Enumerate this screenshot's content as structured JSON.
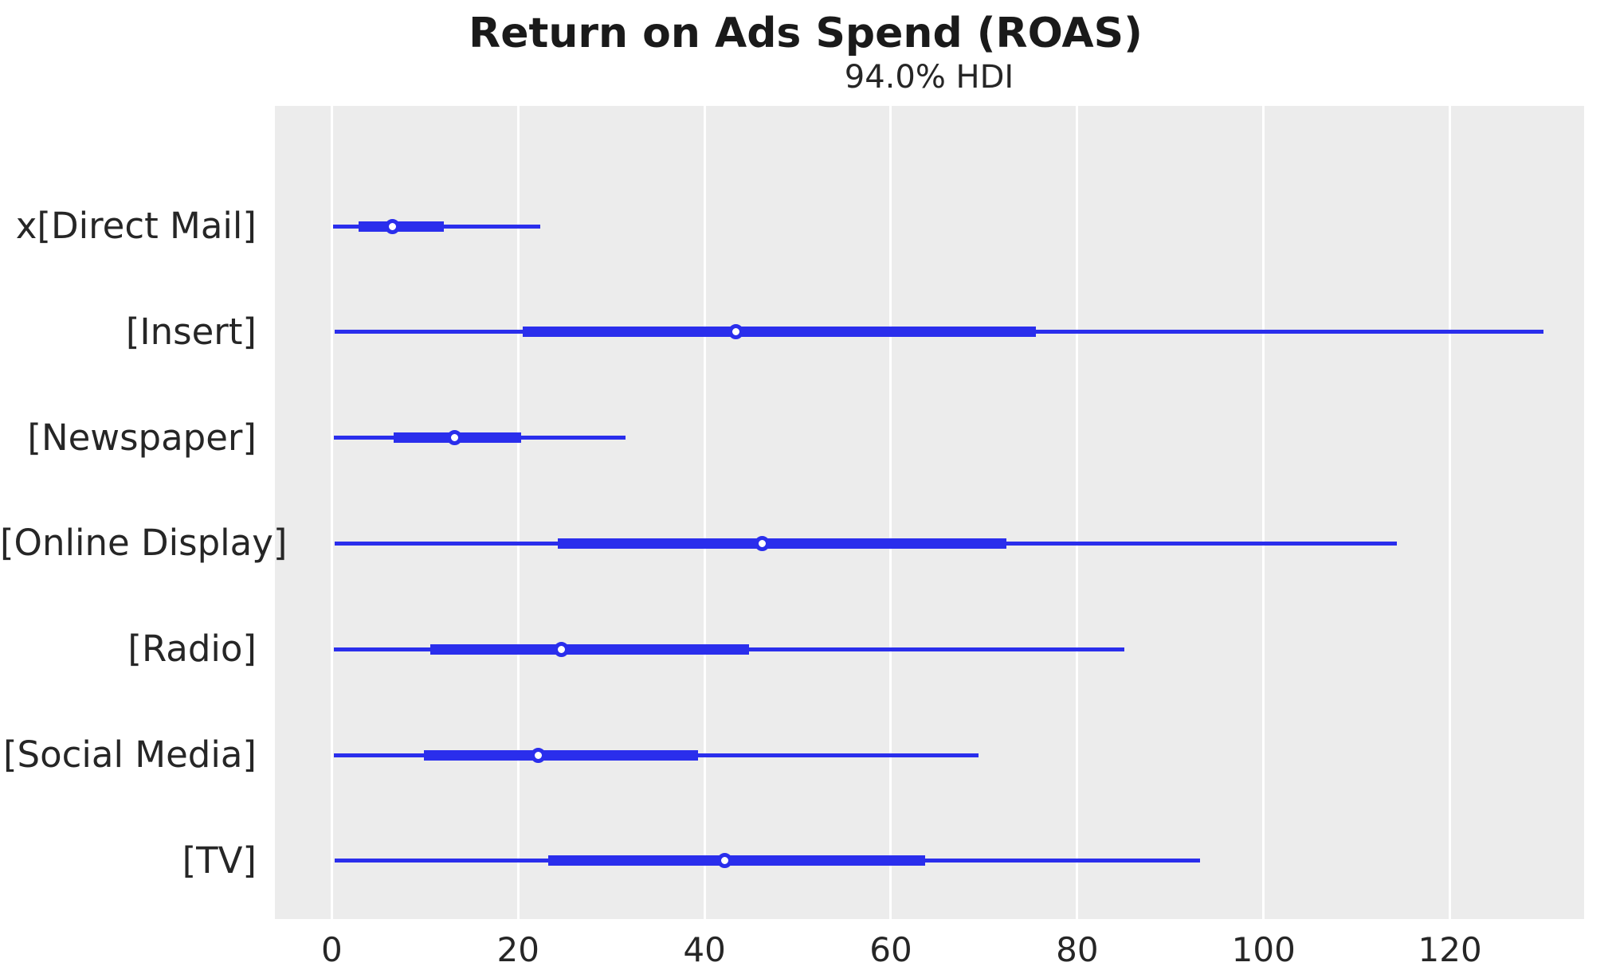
{
  "title": "Return on Ads Spend (ROAS)",
  "subtitle": "94.0% HDI",
  "colors": {
    "line": "#2a2eec",
    "plot_background": "#ececec",
    "gridline": "#ffffff",
    "text": "#262626",
    "title_text": "#1a1a1a"
  },
  "chart_data": {
    "type": "forest",
    "title": "Return on Ads Spend (ROAS)",
    "subtitle": "94.0% HDI",
    "orientation": "horizontal",
    "xlim": [
      -6.1,
      134.4
    ],
    "x_ticks": [
      0,
      20,
      40,
      60,
      80,
      100,
      120
    ],
    "grid": "vertical white gridlines on gray panel",
    "legend": "none",
    "series": [
      {
        "label": "x[Direct Mail]",
        "hdi_94": [
          0.1,
          22.4
        ],
        "hdi_50": [
          2.9,
          12.0
        ],
        "median": 6.5
      },
      {
        "label": "[Insert]",
        "hdi_94": [
          0.3,
          130.0
        ],
        "hdi_50": [
          20.5,
          75.6
        ],
        "median": 43.4
      },
      {
        "label": "[Newspaper]",
        "hdi_94": [
          0.2,
          31.5
        ],
        "hdi_50": [
          6.6,
          20.3
        ],
        "median": 13.2
      },
      {
        "label": "[Online Display]",
        "hdi_94": [
          0.3,
          114.3
        ],
        "hdi_50": [
          24.3,
          72.4
        ],
        "median": 46.2
      },
      {
        "label": "[Radio]",
        "hdi_94": [
          0.2,
          85.1
        ],
        "hdi_50": [
          10.6,
          44.8
        ],
        "median": 24.6
      },
      {
        "label": "[Social Media]",
        "hdi_94": [
          0.2,
          69.4
        ],
        "hdi_50": [
          9.9,
          39.3
        ],
        "median": 22.2
      },
      {
        "label": "[TV]",
        "hdi_94": [
          0.3,
          93.2
        ],
        "hdi_50": [
          23.2,
          63.7
        ],
        "median": 42.2
      }
    ]
  }
}
